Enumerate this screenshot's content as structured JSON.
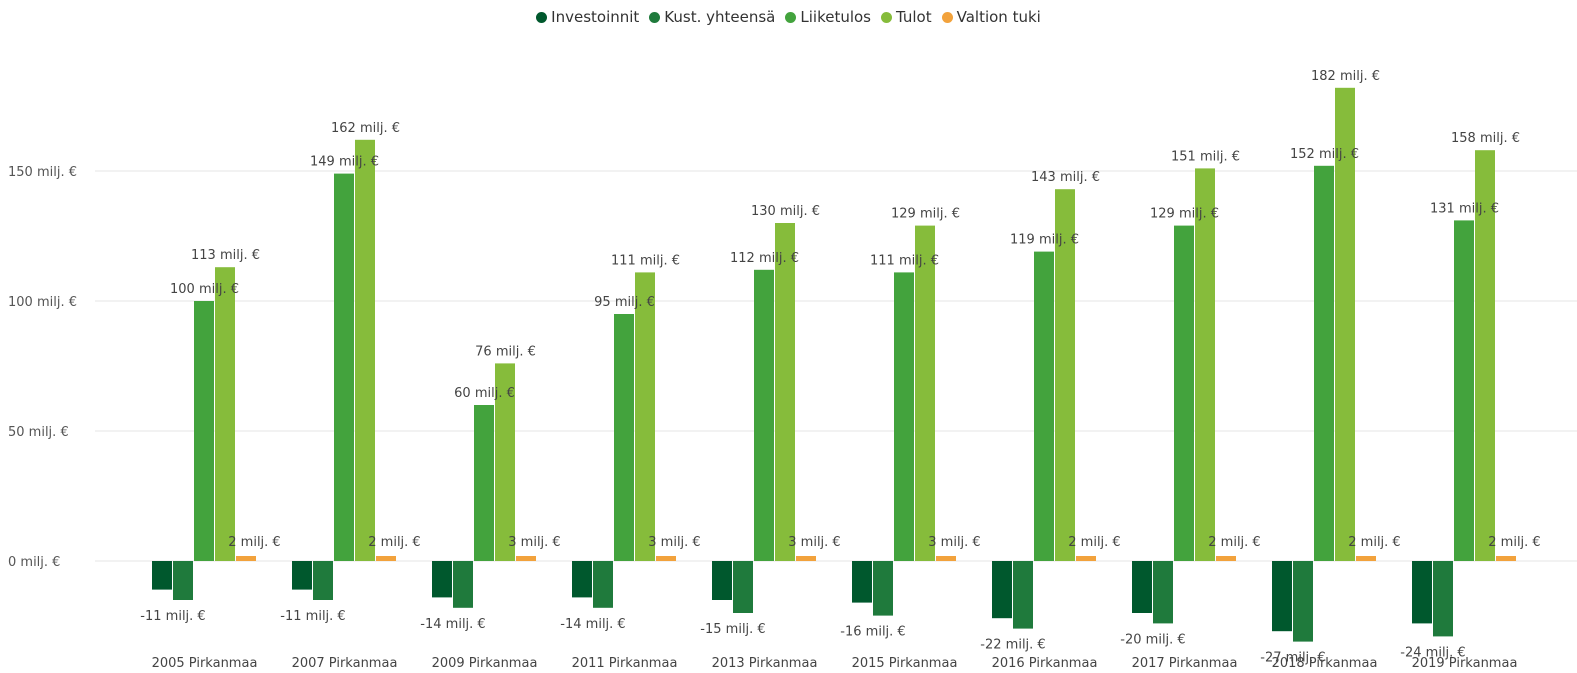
{
  "chart_data": {
    "type": "bar",
    "title": "",
    "xlabel": "",
    "ylabel": "",
    "ylim": [
      -40,
      185
    ],
    "y_ticks": [
      {
        "value": 0,
        "label": "0 milj. €"
      },
      {
        "value": 50,
        "label": "50 milj. €"
      },
      {
        "value": 100,
        "label": "100 milj. €"
      },
      {
        "value": 150,
        "label": "150 milj. €"
      }
    ],
    "grid": true,
    "legend_position": "top-center",
    "categories": [
      "2005 Pirkanmaa",
      "2007 Pirkanmaa",
      "2009 Pirkanmaa",
      "2011 Pirkanmaa",
      "2013 Pirkanmaa",
      "2015 Pirkanmaa",
      "2016 Pirkanmaa",
      "2017 Pirkanmaa",
      "2018 Pirkanmaa",
      "2019 Pirkanmaa"
    ],
    "series": [
      {
        "name": "Investoinnit",
        "color": "#00582d",
        "values": [
          -11,
          -11,
          -14,
          -14,
          -15,
          -16,
          -22,
          -20,
          -27,
          -24
        ],
        "labels": [
          "-11 milj. €",
          "-11 milj. €",
          "-14 milj. €",
          "-14 milj. €",
          "-15 milj. €",
          "-16 milj. €",
          "-22 milj. €",
          "-20 milj. €",
          "-27 milj. €",
          "-24 milj. €"
        ]
      },
      {
        "name": "Kust. yhteensä",
        "color": "#1f7a3c",
        "values": [
          -15,
          -15,
          -18,
          -18,
          -20,
          -21,
          -26,
          -24,
          -31,
          -29
        ],
        "labels": [
          "",
          "",
          "",
          "",
          "",
          "",
          "",
          "",
          "",
          ""
        ]
      },
      {
        "name": "Liiketulos",
        "color": "#43a33d",
        "values": [
          100,
          149,
          60,
          95,
          112,
          111,
          119,
          129,
          152,
          131
        ],
        "labels": [
          "100 milj. €",
          "149 milj. €",
          "60 milj. €",
          "95 milj. €",
          "112 milj. €",
          "111 milj. €",
          "119 milj. €",
          "129 milj. €",
          "152 milj. €",
          "131 milj. €"
        ]
      },
      {
        "name": "Tulot",
        "color": "#86bc3b",
        "values": [
          113,
          162,
          76,
          111,
          130,
          129,
          143,
          151,
          182,
          158
        ],
        "labels": [
          "113 milj. €",
          "162 milj. €",
          "76 milj. €",
          "111 milj. €",
          "130 milj. €",
          "129 milj. €",
          "143 milj. €",
          "151 milj. €",
          "182 milj. €",
          "158 milj. €"
        ]
      },
      {
        "name": "Valtion tuki",
        "color": "#f2a23c",
        "values": [
          2,
          2,
          3,
          3,
          3,
          3,
          2,
          2,
          2,
          2
        ],
        "labels": [
          "2 milj. €",
          "2 milj. €",
          "3 milj. €",
          "3 milj. €",
          "3 milj. €",
          "3 milj. €",
          "2 milj. €",
          "2 milj. €",
          "2 milj. €",
          "2 milj. €"
        ]
      }
    ]
  }
}
